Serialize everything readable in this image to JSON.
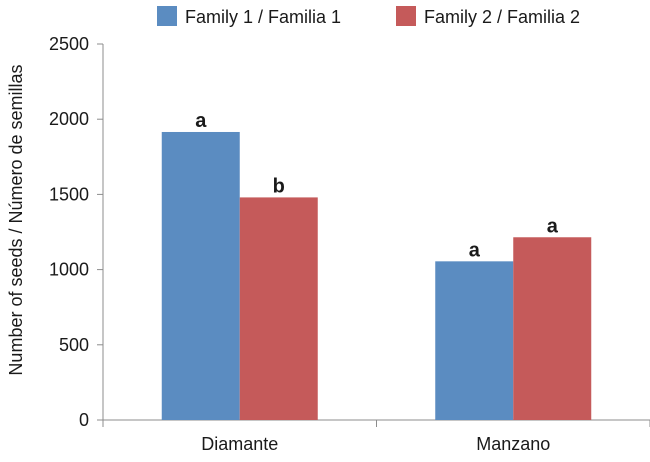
{
  "chart_data": {
    "type": "bar",
    "categories": [
      "Diamante",
      "Manzano"
    ],
    "series": [
      {
        "name": "Family 1 / Familia 1",
        "values": [
          1915,
          1055
        ],
        "color": "#5B8CC1",
        "labels": [
          "a",
          "a"
        ]
      },
      {
        "name": "Family 2 / Familia 2",
        "values": [
          1480,
          1215
        ],
        "color": "#C55A5A",
        "labels": [
          "b",
          "a"
        ]
      }
    ],
    "ylabel": "Number of seeds / Número de semillas",
    "xlabel": "",
    "ylim": [
      0,
      2500
    ],
    "yticks": [
      0,
      500,
      1000,
      1500,
      2000,
      2500
    ],
    "grid": false,
    "legend_position": "top"
  }
}
